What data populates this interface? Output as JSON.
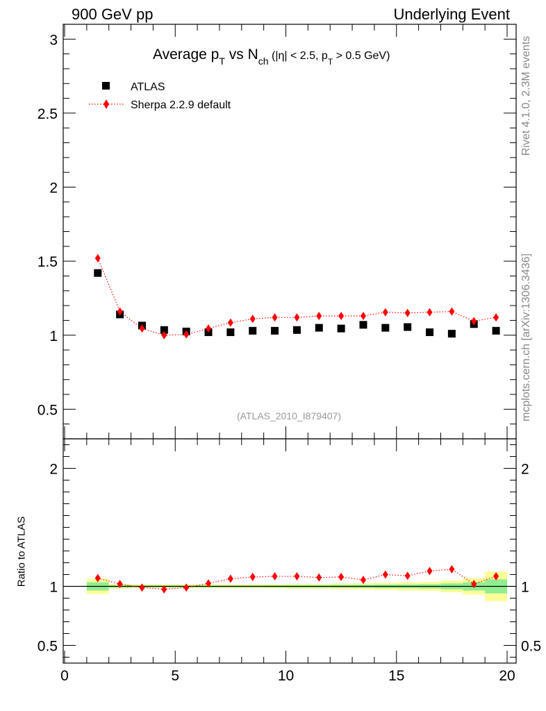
{
  "header": {
    "left": "900 GeV pp",
    "right": "Underlying Event"
  },
  "side_text": {
    "rivet": "Rivet 4.1.0,  2.3M events",
    "source": "mcplots.cern.ch [arXiv:1306.3436]"
  },
  "analysis_label": "(ATLAS_2010_I879407)",
  "chart_data": {
    "type": "scatter",
    "title": {
      "average": "Average p",
      "pt_sub": "T",
      "vs": " vs N",
      "nch_sub": "ch",
      "cut1": " (|η| < 2.5, p",
      "cut_pt_sub": "T",
      "cut2": " > 0.5 GeV)"
    },
    "xlabel": "",
    "ylabel": "",
    "xlim": [
      0,
      20
    ],
    "ylim": [
      0.3,
      3.1
    ],
    "x_ticks": [
      "0",
      "5",
      "10",
      "15",
      "20"
    ],
    "y_ticks": [
      "0.5",
      "1",
      "1.5",
      "2",
      "2.5",
      "3"
    ],
    "legend_position": "top-left",
    "x": [
      1.5,
      2.5,
      3.5,
      4.5,
      5.5,
      6.5,
      7.5,
      8.5,
      9.5,
      10.5,
      11.5,
      12.5,
      13.5,
      14.5,
      15.5,
      16.5,
      17.5,
      18.5,
      19.5
    ],
    "series": [
      {
        "name": "ATLAS",
        "color": "#000000",
        "marker": "square",
        "values": [
          1.42,
          1.14,
          1.065,
          1.035,
          1.025,
          1.02,
          1.02,
          1.03,
          1.03,
          1.035,
          1.05,
          1.045,
          1.07,
          1.05,
          1.055,
          1.02,
          1.01,
          1.075,
          1.03
        ]
      },
      {
        "name": "Sherpa 2.2.9 default",
        "color": "#ff0000",
        "marker": "diamond",
        "line": "dotted",
        "values": [
          1.52,
          1.16,
          1.045,
          1.0,
          1.005,
          1.045,
          1.085,
          1.11,
          1.12,
          1.12,
          1.13,
          1.13,
          1.13,
          1.155,
          1.15,
          1.155,
          1.16,
          1.095,
          1.12
        ]
      }
    ],
    "ratio_panel": {
      "ylabel": "Ratio to ATLAS",
      "ylim": [
        0.35,
        2.25
      ],
      "y_ticks": [
        "0.5",
        "1",
        "2"
      ],
      "bins": [
        [
          1,
          2
        ],
        [
          2,
          3
        ],
        [
          3,
          4
        ],
        [
          4,
          5
        ],
        [
          5,
          6
        ],
        [
          6,
          7
        ],
        [
          7,
          8
        ],
        [
          8,
          9
        ],
        [
          9,
          10
        ],
        [
          10,
          11
        ],
        [
          11,
          12
        ],
        [
          12,
          13
        ],
        [
          13,
          14
        ],
        [
          14,
          15
        ],
        [
          15,
          16
        ],
        [
          16,
          17
        ],
        [
          17,
          18
        ],
        [
          18,
          19
        ],
        [
          19,
          20
        ]
      ],
      "stat_band": [
        0.035,
        0.01,
        0.008,
        0.008,
        0.008,
        0.008,
        0.008,
        0.008,
        0.009,
        0.01,
        0.01,
        0.012,
        0.013,
        0.015,
        0.016,
        0.018,
        0.025,
        0.035,
        0.06
      ],
      "total_band": [
        0.065,
        0.02,
        0.016,
        0.016,
        0.016,
        0.016,
        0.016,
        0.017,
        0.018,
        0.02,
        0.02,
        0.024,
        0.026,
        0.03,
        0.035,
        0.038,
        0.05,
        0.07,
        0.125
      ],
      "band_colors": {
        "stat": "#90ee90",
        "total": "#ffff99"
      },
      "ratio_values": [
        1.07,
        1.02,
        0.99,
        0.975,
        0.99,
        1.025,
        1.065,
        1.08,
        1.085,
        1.085,
        1.075,
        1.08,
        1.055,
        1.1,
        1.09,
        1.13,
        1.145,
        1.02,
        1.085
      ]
    }
  }
}
